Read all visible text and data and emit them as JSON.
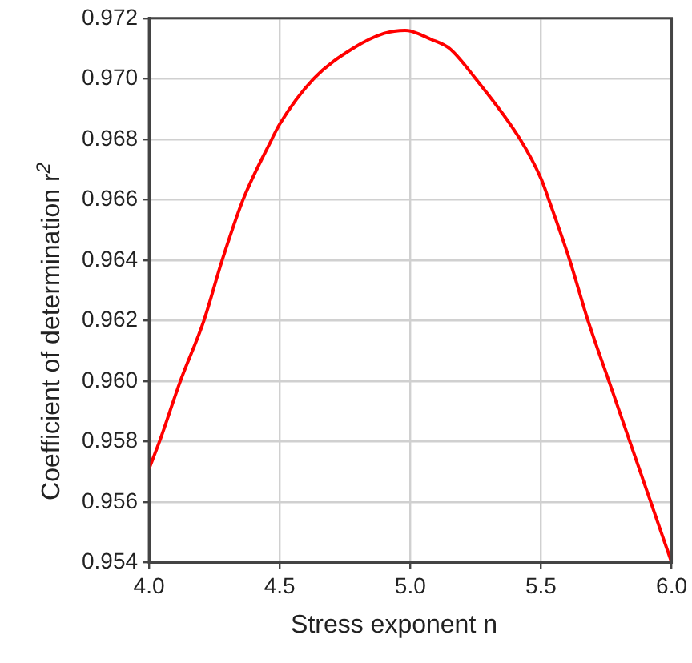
{
  "chart_data": {
    "type": "line",
    "xlabel": "Stress exponent n",
    "ylabel": "Coefficient of determination r$^{2}$",
    "xlim": [
      4.0,
      6.0
    ],
    "xticks": [
      {
        "value": 4,
        "label": "4.0"
      },
      {
        "value": 4.5,
        "label": "4.5"
      },
      {
        "value": 5,
        "label": "5.0"
      },
      {
        "value": 5.5,
        "label": "5.5"
      },
      {
        "value": 6,
        "label": "6.0"
      }
    ],
    "ylim": [
      0.954,
      0.972
    ],
    "yticks": [
      {
        "value": 0.954,
        "label": "0.954"
      },
      {
        "value": 0.956,
        "label": "0.956"
      },
      {
        "value": 0.958,
        "label": "0.958"
      },
      {
        "value": 0.96,
        "label": "0.960"
      },
      {
        "value": 0.962,
        "label": "0.962"
      },
      {
        "value": 0.964,
        "label": "0.964"
      },
      {
        "value": 0.966,
        "label": "0.966"
      },
      {
        "value": 0.968,
        "label": "0.968"
      },
      {
        "value": 0.97,
        "label": "0.970"
      },
      {
        "value": 0.972,
        "label": "0.972"
      }
    ],
    "grid": true,
    "legend": false,
    "marker": "none",
    "line_style": "solid",
    "series": [
      {
        "color": "#ff0000",
        "x": [
          4.0,
          4.04,
          4.12,
          4.21,
          4.28,
          4.36,
          4.47,
          4.5,
          4.63,
          4.78,
          4.9,
          4.98,
          5.08,
          5.15,
          5.25,
          5.42,
          5.5,
          5.53,
          5.61,
          5.68,
          5.76,
          5.84,
          5.92,
          6.0
        ],
        "values": [
          0.9571,
          0.958,
          0.96,
          0.962,
          0.964,
          0.966,
          0.968,
          0.9685,
          0.97,
          0.971,
          0.9715,
          0.9716,
          0.9713,
          0.971,
          0.97,
          0.968,
          0.9667,
          0.966,
          0.964,
          0.962,
          0.96,
          0.958,
          0.956,
          0.954
        ]
      }
    ]
  }
}
